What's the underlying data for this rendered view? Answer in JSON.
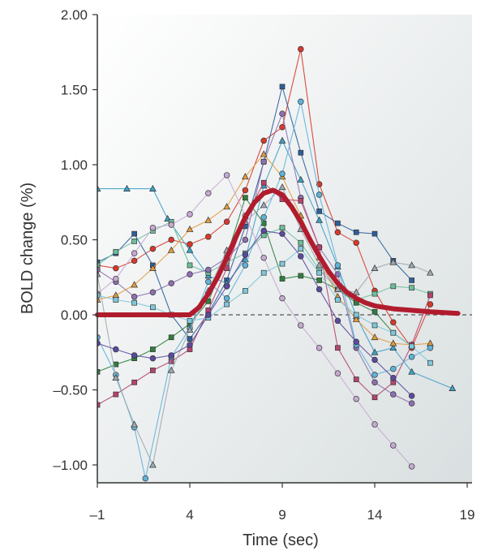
{
  "chart_data": {
    "type": "line",
    "xlabel": "Time (sec)",
    "ylabel": "BOLD change (%)",
    "xlim": [
      -1,
      20
    ],
    "ylim": [
      -1.1,
      2.0
    ],
    "x_ticks": [
      -1,
      4,
      9,
      14,
      19
    ],
    "x_tick_labels": [
      "–1",
      "4",
      "9",
      "14",
      "19"
    ],
    "y_ticks": [
      2.0,
      1.5,
      1.0,
      0.5,
      0.0,
      -0.5,
      -1.0
    ],
    "y_tick_labels": [
      "2.00",
      "1.50",
      "1.00",
      "0.50",
      "0.00",
      "–0.50",
      "–1.00"
    ],
    "baseline": 0,
    "colors": {
      "fit": "#b01c2e",
      "plot_bg_light": "#ffffff",
      "plot_bg_dark": "#d9dfe0",
      "axis": "#333333"
    },
    "fitted_response": {
      "x": [
        -1,
        0,
        1,
        2,
        3,
        4,
        4.5,
        5,
        5.5,
        6,
        6.5,
        7,
        7.5,
        8,
        8.5,
        9,
        9.5,
        10,
        10.5,
        11,
        11.5,
        12,
        12.5,
        13,
        13.5,
        14,
        15,
        16,
        17,
        18.5
      ],
      "y": [
        0,
        0,
        0,
        0,
        0,
        0,
        0.05,
        0.14,
        0.25,
        0.38,
        0.52,
        0.65,
        0.75,
        0.81,
        0.83,
        0.8,
        0.72,
        0.62,
        0.5,
        0.39,
        0.29,
        0.21,
        0.15,
        0.11,
        0.08,
        0.06,
        0.04,
        0.03,
        0.02,
        0.01
      ]
    },
    "series": [
      {
        "color": "#d8392b",
        "marker": "circle",
        "x": [
          -1,
          0,
          1,
          2,
          3,
          4,
          5,
          6,
          7,
          8,
          9,
          10,
          11,
          12,
          13,
          14,
          15,
          16,
          17
        ],
        "y": [
          0.33,
          0.31,
          0.36,
          0.44,
          0.5,
          0.47,
          0.52,
          0.62,
          0.83,
          1.16,
          1.25,
          1.77,
          0.87,
          0.55,
          0.48,
          0.16,
          -0.05,
          -0.22,
          0.07
        ]
      },
      {
        "color": "#2d5f9a",
        "marker": "square",
        "x": [
          -1,
          0,
          1,
          2,
          3,
          4,
          5,
          6,
          7,
          8,
          9,
          10,
          11,
          12,
          13,
          14,
          15,
          16
        ],
        "y": [
          0.35,
          0.41,
          0.54,
          0.33,
          0.0,
          -0.16,
          0.01,
          0.23,
          0.59,
          1.02,
          1.52,
          1.08,
          0.69,
          0.61,
          0.55,
          0.54,
          0.36,
          0.23
        ]
      },
      {
        "color": "#3ea0c6",
        "marker": "triangle",
        "x": [
          -1,
          0.6,
          2,
          2.8,
          4,
          5,
          6,
          7,
          8,
          9,
          10,
          11,
          12,
          13,
          14,
          15,
          16,
          18.2
        ],
        "y": [
          0.84,
          0.84,
          0.84,
          0.64,
          0.43,
          0.26,
          0.21,
          0.37,
          0.86,
          1.16,
          0.9,
          0.63,
          0.32,
          -0.01,
          -0.25,
          -0.22,
          -0.38,
          -0.49
        ]
      },
      {
        "color": "#6bbf9a",
        "marker": "square",
        "x": [
          -1,
          0,
          1,
          2,
          3,
          4,
          5,
          6,
          7,
          8,
          9,
          10,
          11,
          12,
          13,
          14,
          15,
          16,
          17
        ],
        "y": [
          0.33,
          0.42,
          0.49,
          0.56,
          0.62,
          0.33,
          0.28,
          0.35,
          0.41,
          0.53,
          0.58,
          0.48,
          0.3,
          0.17,
          0.1,
          0.14,
          0.19,
          0.18,
          0.14
        ]
      },
      {
        "color": "#2f7f3e",
        "marker": "square",
        "x": [
          -1,
          0,
          1,
          2,
          3,
          4,
          5,
          6,
          7,
          8,
          9,
          10,
          11,
          12,
          13,
          14,
          15,
          16
        ],
        "y": [
          -0.38,
          -0.33,
          -0.29,
          -0.23,
          -0.15,
          -0.06,
          0.09,
          0.39,
          0.78,
          0.61,
          0.24,
          0.26,
          0.23,
          0.17,
          0.08,
          0.02,
          -0.12,
          -0.21
        ]
      },
      {
        "color": "#8f6fb3",
        "marker": "circle",
        "x": [
          -1,
          0,
          1,
          2,
          3,
          4,
          5,
          6,
          7,
          8,
          9,
          10,
          11,
          12,
          13,
          14,
          15,
          16
        ],
        "y": [
          0.3,
          0.22,
          0.12,
          0.15,
          0.21,
          0.27,
          0.3,
          0.38,
          0.5,
          1.02,
          1.34,
          0.78,
          0.45,
          0.27,
          -0.22,
          -0.45,
          -0.53,
          -0.59
        ]
      },
      {
        "color": "#e39b3d",
        "marker": "triangle",
        "x": [
          -1,
          0,
          1,
          2,
          3,
          4,
          5,
          6,
          7,
          8,
          9,
          10,
          11,
          12,
          13,
          14,
          15,
          16,
          17
        ],
        "y": [
          0.1,
          0.13,
          0.2,
          0.31,
          0.43,
          0.57,
          0.63,
          0.72,
          0.92,
          1.07,
          0.92,
          0.66,
          0.38,
          0.12,
          -0.03,
          -0.15,
          -0.19,
          -0.2,
          -0.19
        ]
      },
      {
        "color": "#b8436e",
        "marker": "square",
        "x": [
          -1,
          0,
          1,
          2,
          3,
          4,
          5,
          6,
          7,
          8,
          9,
          10,
          11,
          12,
          13,
          14,
          15,
          16,
          17
        ],
        "y": [
          -0.6,
          -0.53,
          -0.45,
          -0.37,
          -0.31,
          -0.23,
          0.03,
          0.31,
          0.65,
          0.88,
          0.77,
          0.76,
          0.45,
          -0.22,
          -0.43,
          -0.55,
          -0.45,
          -0.2,
          0.13
        ]
      },
      {
        "color": "#5fb3d9",
        "marker": "circle",
        "x": [
          -1,
          0,
          1,
          1.6,
          3,
          4,
          5,
          6,
          7,
          8,
          9,
          10,
          11,
          12,
          13,
          14,
          15,
          16,
          17
        ],
        "y": [
          -0.15,
          -0.4,
          -0.75,
          -1.09,
          -0.28,
          -0.09,
          0.22,
          0.11,
          0.33,
          0.65,
          0.94,
          1.42,
          0.8,
          0.33,
          -0.2,
          -0.4,
          -0.36,
          -0.28,
          -0.22
        ]
      },
      {
        "color": "#9fa8b0",
        "marker": "triangle",
        "x": [
          -1,
          0,
          1,
          2,
          3,
          4,
          5,
          6,
          7,
          8,
          9,
          10,
          11,
          12,
          13,
          14,
          15,
          16,
          17
        ],
        "y": [
          0.27,
          -0.42,
          -0.73,
          -1.0,
          -0.37,
          -0.1,
          0.16,
          0.43,
          0.62,
          0.73,
          0.85,
          0.57,
          0.33,
          0.17,
          0.15,
          0.31,
          0.35,
          0.33,
          0.28
        ]
      },
      {
        "color": "#c6a9d1",
        "marker": "circle",
        "x": [
          -1,
          0,
          1,
          2,
          3,
          4,
          5,
          6,
          7,
          8,
          9,
          10,
          11,
          12,
          13,
          14,
          15,
          16
        ],
        "y": [
          0.14,
          0.24,
          0.41,
          0.58,
          0.6,
          0.67,
          0.81,
          0.93,
          0.66,
          0.38,
          0.11,
          -0.07,
          -0.22,
          -0.39,
          -0.56,
          -0.73,
          -0.87,
          -1.01
        ]
      },
      {
        "color": "#7fc8dc",
        "marker": "square",
        "x": [
          -1,
          0,
          1,
          2,
          3,
          4,
          5,
          6,
          7,
          8,
          9,
          10,
          11,
          12,
          13,
          14,
          15,
          16,
          17
        ],
        "y": [
          0.13,
          0.1,
          0.08,
          0.05,
          0.0,
          -0.04,
          -0.02,
          0.07,
          0.16,
          0.28,
          0.34,
          0.44,
          0.28,
          0.1,
          0.0,
          -0.07,
          -0.12,
          -0.21,
          -0.32
        ]
      },
      {
        "color": "#5b4aa0",
        "marker": "circle",
        "x": [
          -1,
          0,
          1,
          2,
          3,
          4,
          5,
          6,
          7,
          8,
          9,
          10,
          11,
          12,
          13,
          14,
          15,
          16
        ],
        "y": [
          -0.19,
          -0.23,
          -0.27,
          -0.29,
          -0.27,
          -0.2,
          0.0,
          0.19,
          0.4,
          0.56,
          0.54,
          0.39,
          0.17,
          -0.04,
          -0.18,
          -0.3,
          -0.42,
          -0.54
        ]
      }
    ]
  }
}
